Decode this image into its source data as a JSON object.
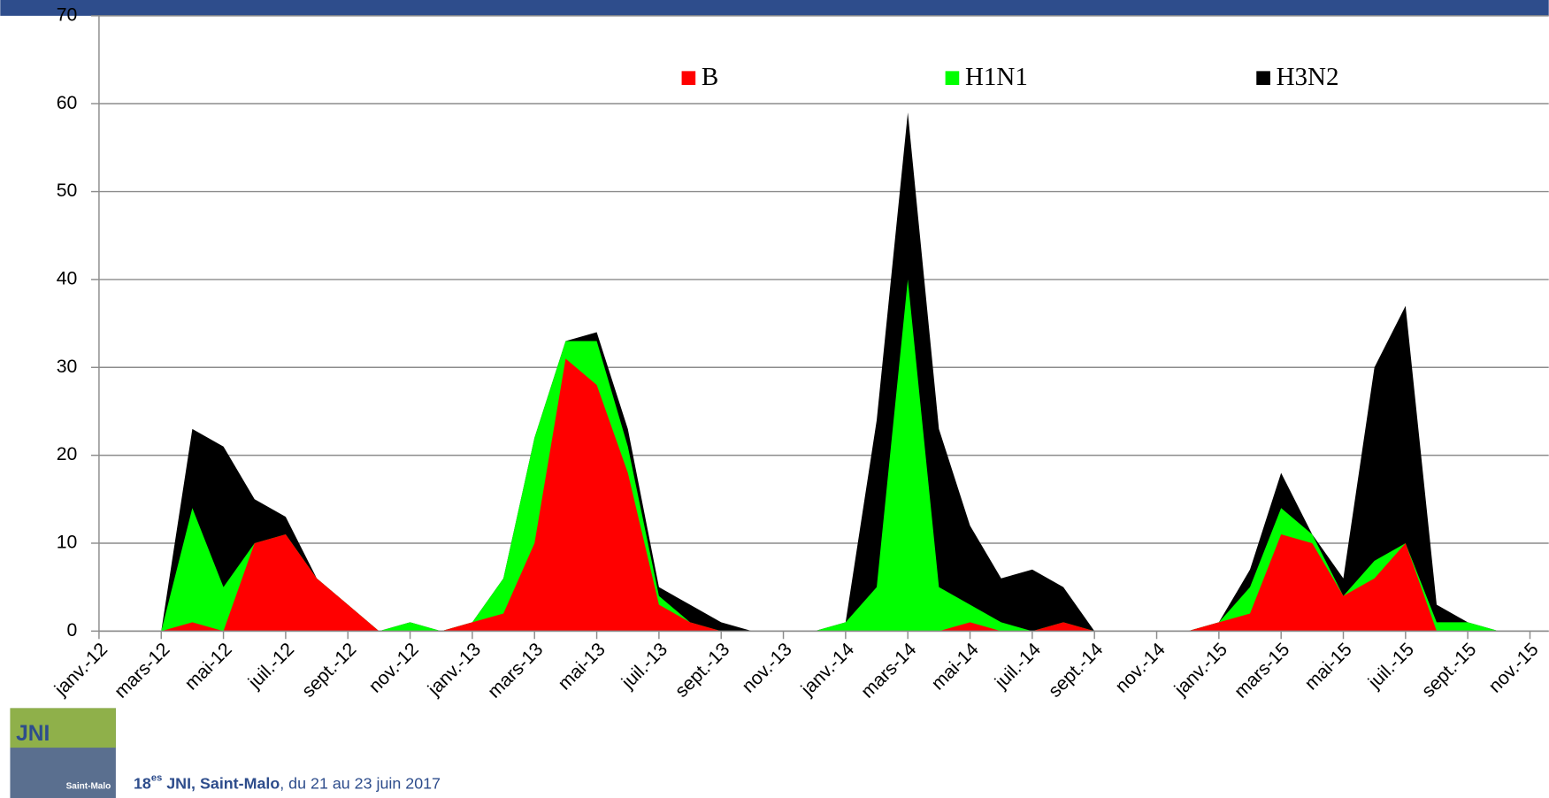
{
  "chart_data": {
    "type": "stacked-area",
    "categories": [
      "janv.-12",
      null,
      "mars-12",
      null,
      "mai-12",
      null,
      "juil.-12",
      null,
      "sept.-12",
      null,
      "nov.-12",
      null,
      "janv.-13",
      null,
      "mars-13",
      null,
      "mai-13",
      null,
      "juil.-13",
      null,
      "sept.-13",
      null,
      "nov.-13",
      null,
      "janv.-14",
      null,
      "mars-14",
      null,
      "mai-14",
      null,
      "juil.-14",
      null,
      "sept.-14",
      null,
      "nov.-14",
      null,
      "janv.-15",
      null,
      "mars-15",
      null,
      "mai-15",
      null,
      "juil.-15",
      null,
      "sept.-15",
      null,
      "nov.-15"
    ],
    "series": [
      {
        "name": "B",
        "color": "#ff0000",
        "values": [
          null,
          null,
          0,
          1,
          0,
          10,
          11,
          6,
          3,
          0,
          0,
          0,
          1,
          2,
          10,
          31,
          28,
          18,
          3,
          1,
          0,
          0,
          0,
          0,
          0,
          0,
          0,
          0,
          1,
          0,
          0,
          1,
          0,
          0,
          0,
          0,
          1,
          2,
          11,
          10,
          4,
          6,
          10,
          0,
          0,
          0,
          null
        ]
      },
      {
        "name": "H1N1",
        "color": "#00ff00",
        "values": [
          null,
          null,
          0,
          13,
          5,
          0,
          0,
          0,
          0,
          0,
          1,
          0,
          0,
          4,
          12,
          2,
          5,
          3,
          1,
          0,
          0,
          0,
          0,
          0,
          1,
          5,
          40,
          5,
          2,
          1,
          0,
          0,
          0,
          0,
          0,
          0,
          0,
          3,
          3,
          1,
          0,
          2,
          0,
          1,
          1,
          0,
          null
        ]
      },
      {
        "name": "H3N2",
        "color": "#000000",
        "values": [
          null,
          null,
          0,
          9,
          16,
          5,
          2,
          0,
          0,
          0,
          0,
          0,
          0,
          0,
          0,
          0,
          1,
          2,
          1,
          2,
          1,
          0,
          0,
          0,
          0,
          19,
          19,
          18,
          9,
          5,
          7,
          4,
          0,
          0,
          0,
          0,
          0,
          2,
          4,
          0,
          2,
          22,
          27,
          2,
          0,
          0,
          null
        ]
      }
    ],
    "ylim": [
      0,
      70
    ],
    "yticks": [
      0,
      10,
      20,
      30,
      40,
      50,
      60,
      70
    ],
    "grid": true,
    "legend": "top"
  },
  "footer": {
    "logo": "JNI",
    "logo_city": "Saint-Malo",
    "edition": "18",
    "edition_suffix": "es",
    "event": " JNI, Saint-Malo",
    "dates": ", du 21 au 23 juin 2017"
  }
}
